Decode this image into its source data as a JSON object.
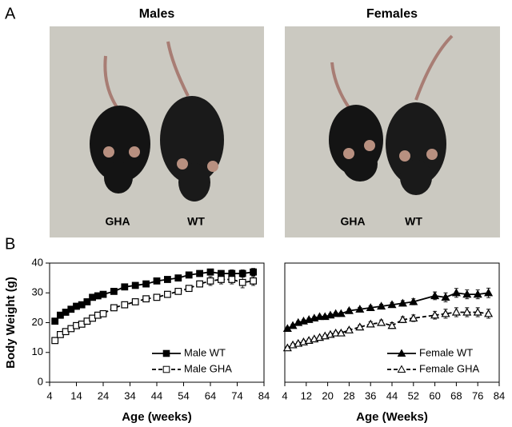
{
  "panel_a": {
    "label": "A",
    "photos": [
      {
        "title": "Males",
        "labels": [
          "GHA",
          "WT"
        ]
      },
      {
        "title": "Females",
        "labels": [
          "GHA",
          "WT"
        ]
      }
    ]
  },
  "panel_b": {
    "label": "B"
  },
  "chart_data": [
    {
      "type": "line",
      "ylabel": "Body Weight (g)",
      "xlabel": "Age (weeks)",
      "xlim": [
        4,
        84
      ],
      "xticks": [
        4,
        14,
        24,
        34,
        44,
        54,
        64,
        74,
        84
      ],
      "ylim": [
        0,
        40
      ],
      "yticks": [
        0,
        10,
        20,
        30,
        40
      ],
      "legend": "lower right",
      "series": [
        {
          "name": "Male WT",
          "color": "#000000",
          "marker": "square",
          "marker_fill": "#000000",
          "dashed": false,
          "x": [
            6,
            8,
            10,
            12,
            14,
            16,
            18,
            20,
            22,
            24,
            28,
            32,
            36,
            40,
            44,
            48,
            52,
            56,
            60,
            64,
            68,
            72,
            76,
            80
          ],
          "values": [
            20.5,
            22.5,
            23.5,
            24.5,
            25.5,
            26,
            27,
            28.5,
            29,
            29.5,
            30.5,
            32,
            32.5,
            33,
            34,
            34.5,
            35,
            36,
            36.5,
            37,
            36.5,
            36.5,
            36.5,
            37
          ],
          "errors": [
            0.8,
            0.6,
            0.6,
            0.6,
            0.6,
            0.6,
            0.6,
            0.6,
            0.6,
            0.6,
            0.6,
            0.6,
            0.7,
            0.7,
            0.7,
            0.7,
            0.8,
            0.8,
            0.9,
            1,
            1,
            1.2,
            1.2,
            1.2
          ]
        },
        {
          "name": "Male GHA",
          "color": "#000000",
          "marker": "square",
          "marker_fill": "#ffffff",
          "dashed": true,
          "x": [
            6,
            8,
            10,
            12,
            14,
            16,
            18,
            20,
            22,
            24,
            28,
            32,
            36,
            40,
            44,
            48,
            52,
            56,
            60,
            64,
            68,
            72,
            76,
            80
          ],
          "values": [
            14,
            16,
            17,
            18,
            19,
            19.5,
            20.5,
            21.5,
            22.5,
            23,
            25,
            26,
            27,
            28,
            28.5,
            29.5,
            30.5,
            31.5,
            33,
            34,
            34.5,
            34.5,
            33.5,
            34
          ],
          "errors": [
            0.6,
            0.6,
            0.6,
            0.6,
            0.6,
            0.6,
            0.6,
            0.6,
            0.6,
            0.6,
            0.6,
            0.6,
            0.7,
            0.7,
            0.7,
            0.7,
            0.8,
            0.8,
            1,
            1.5,
            1.5,
            1.5,
            1.8,
            1.5
          ]
        }
      ]
    },
    {
      "type": "line",
      "xlabel": "Age (Weeks)",
      "xlim": [
        4,
        84
      ],
      "xticks": [
        4,
        12,
        20,
        28,
        36,
        44,
        52,
        60,
        68,
        76,
        84
      ],
      "ylim": [
        0,
        40
      ],
      "legend": "lower right",
      "series": [
        {
          "name": "Female WT",
          "color": "#000000",
          "marker": "triangle",
          "marker_fill": "#000000",
          "dashed": false,
          "x": [
            5,
            7,
            9,
            11,
            13,
            15,
            17,
            19,
            21,
            23,
            25,
            28,
            32,
            36,
            40,
            44,
            48,
            52,
            60,
            64,
            68,
            72,
            76,
            80
          ],
          "values": [
            18,
            19,
            20,
            20.5,
            21,
            21.5,
            22,
            22,
            22.5,
            23,
            23,
            24,
            24.5,
            25,
            25.5,
            26,
            26.5,
            27,
            29,
            28.5,
            30,
            29.5,
            29.5,
            30
          ],
          "errors": [
            0.5,
            0.5,
            0.5,
            0.5,
            0.5,
            0.5,
            0.5,
            0.5,
            0.5,
            0.5,
            0.5,
            0.6,
            0.6,
            0.7,
            0.7,
            0.8,
            0.9,
            1,
            1.3,
            1.5,
            1.5,
            1.5,
            1.5,
            1.6
          ]
        },
        {
          "name": "Female GHA",
          "color": "#000000",
          "marker": "triangle",
          "marker_fill": "#ffffff",
          "dashed": true,
          "x": [
            5,
            7,
            9,
            11,
            13,
            15,
            17,
            19,
            21,
            23,
            25,
            28,
            32,
            36,
            40,
            44,
            48,
            52,
            60,
            64,
            68,
            72,
            76,
            80
          ],
          "values": [
            11.5,
            12.5,
            13,
            13.5,
            14,
            14.5,
            15,
            15.5,
            16,
            16.5,
            16.5,
            17.5,
            18.5,
            19.5,
            20,
            19,
            21,
            21.5,
            22.5,
            23,
            23.5,
            23.5,
            23.5,
            23
          ],
          "errors": [
            0.5,
            0.5,
            0.5,
            0.5,
            0.5,
            0.5,
            0.5,
            0.5,
            0.5,
            0.5,
            0.6,
            0.6,
            0.7,
            0.8,
            0.9,
            1,
            1,
            1.1,
            1.3,
            1.5,
            1.5,
            1.5,
            1.5,
            1.5
          ]
        }
      ]
    }
  ]
}
